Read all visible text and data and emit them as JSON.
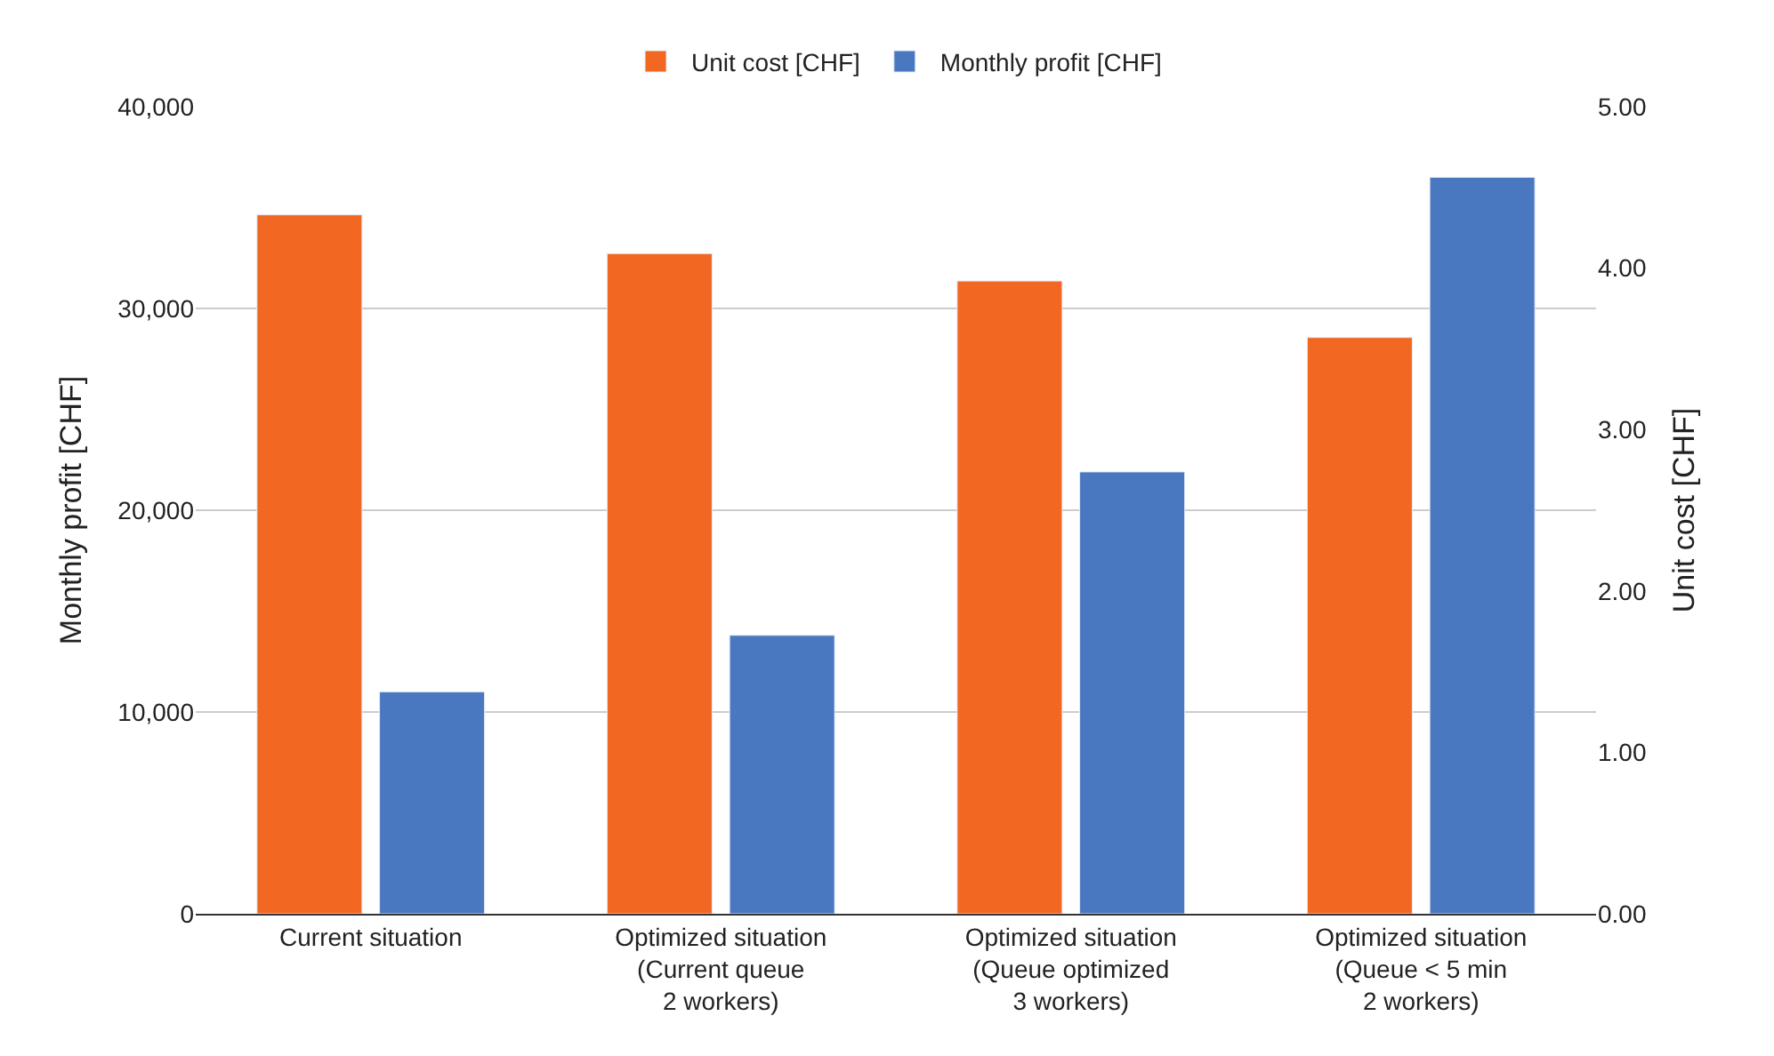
{
  "chart_data": {
    "type": "bar",
    "categories": [
      "Current situation",
      "Optimized situation\n(Current queue\n2 workers)",
      "Optimized situation\n(Queue optimized\n3 workers)",
      "Optimized situation\n(Queue < 5 min\n2 workers)"
    ],
    "series": [
      {
        "name": "Unit cost [CHF]",
        "color": "#f26722",
        "axis": "y2",
        "values": [
          4.33,
          4.09,
          3.92,
          3.57
        ]
      },
      {
        "name": "Monthly profit [CHF]",
        "color": "#4a78c0",
        "values": [
          11000,
          13800,
          21900,
          36500
        ]
      }
    ],
    "ylabel": "Monthly profit [CHF]",
    "y2label": "Unit cost [CHF]",
    "ylim": [
      0,
      40000
    ],
    "yticks": [
      {
        "value": 0,
        "label": "0"
      },
      {
        "value": 10000,
        "label": "10,000"
      },
      {
        "value": 20000,
        "label": "20,000"
      },
      {
        "value": 30000,
        "label": "30,000"
      },
      {
        "value": 40000,
        "label": "40,000"
      }
    ],
    "y2lim": [
      0,
      5
    ],
    "y2ticks": [
      {
        "value": 0,
        "label": "0.00"
      },
      {
        "value": 1,
        "label": "1.00"
      },
      {
        "value": 2,
        "label": "2.00"
      },
      {
        "value": 3,
        "label": "3.00"
      },
      {
        "value": 4,
        "label": "4.00"
      },
      {
        "value": 5,
        "label": "5.00"
      }
    ],
    "grid": "y",
    "legend": "top"
  }
}
